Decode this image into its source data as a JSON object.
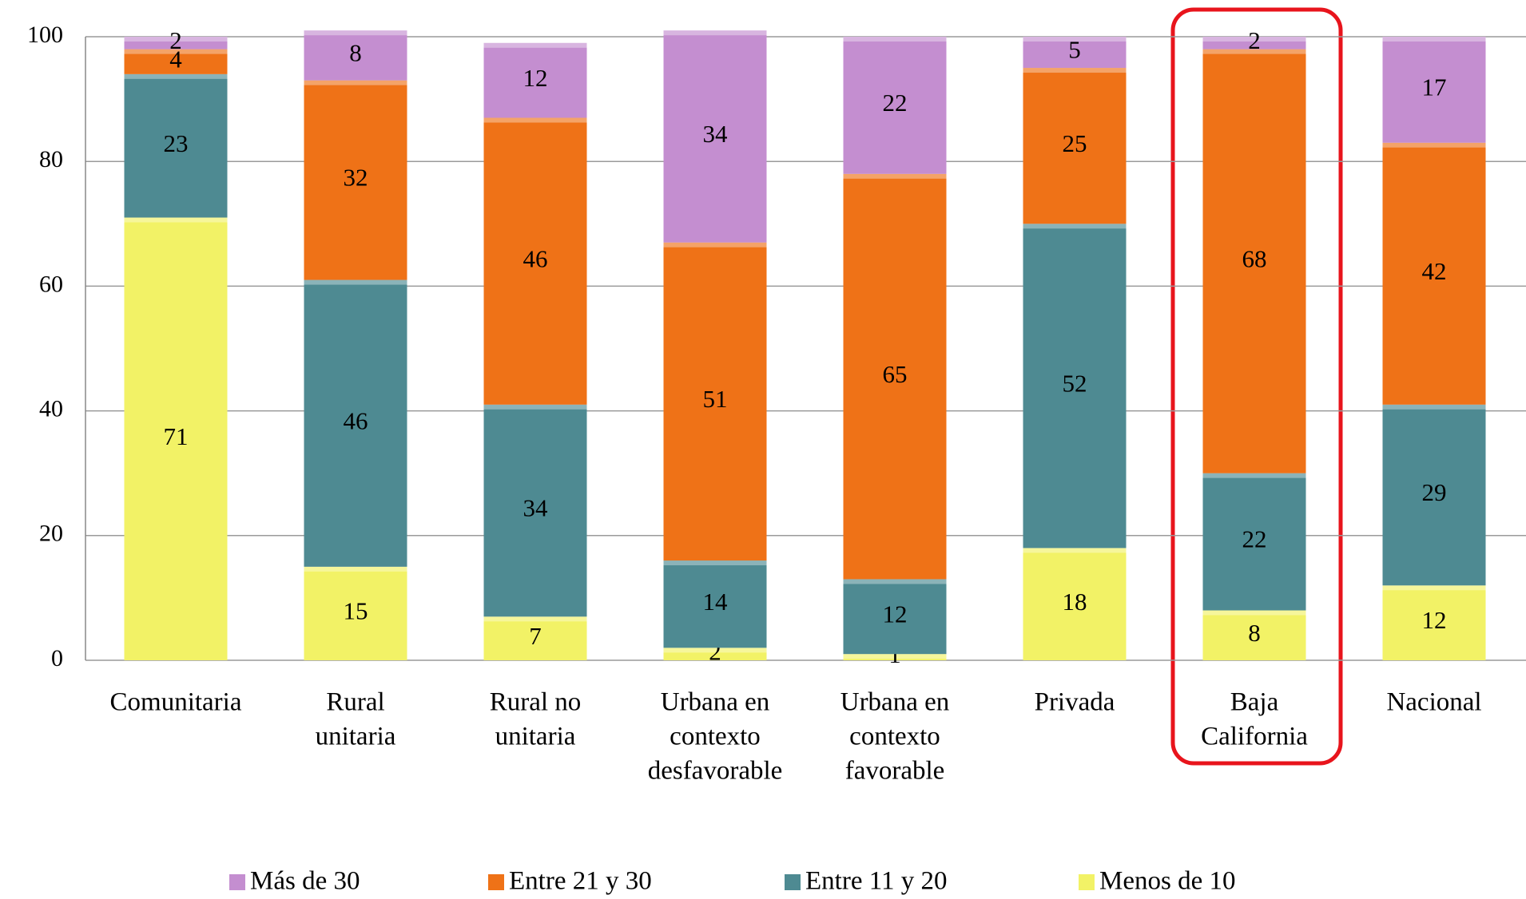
{
  "chart_data": {
    "type": "stacked_bar",
    "categories": [
      [
        "Comunitaria"
      ],
      [
        "Rural",
        "unitaria"
      ],
      [
        "Rural no",
        "unitaria"
      ],
      [
        "Urbana en",
        "contexto",
        "desfavorable"
      ],
      [
        "Urbana en",
        "contexto",
        "favorable"
      ],
      [
        "Privada"
      ],
      [
        "Baja",
        "California"
      ],
      [
        "Nacional"
      ]
    ],
    "series": [
      {
        "name": "Menos de 10",
        "color": "#f2f266",
        "values": [
          71,
          15,
          7,
          2,
          1,
          18,
          8,
          12
        ]
      },
      {
        "name": "Entre 11 y 20",
        "color": "#4e8a92",
        "values": [
          23,
          46,
          34,
          14,
          12,
          52,
          22,
          29
        ]
      },
      {
        "name": "Entre 21 y 30",
        "color": "#ef7217",
        "values": [
          4,
          32,
          46,
          51,
          65,
          25,
          68,
          42
        ]
      },
      {
        "name": "Más de 30",
        "color": "#c48ed0",
        "values": [
          2,
          8,
          12,
          34,
          22,
          5,
          2,
          17
        ]
      }
    ],
    "ylim": [
      0,
      100
    ],
    "yticks": [
      0,
      20,
      40,
      60,
      80,
      100
    ],
    "grid": true,
    "legend": "bottom"
  }
}
